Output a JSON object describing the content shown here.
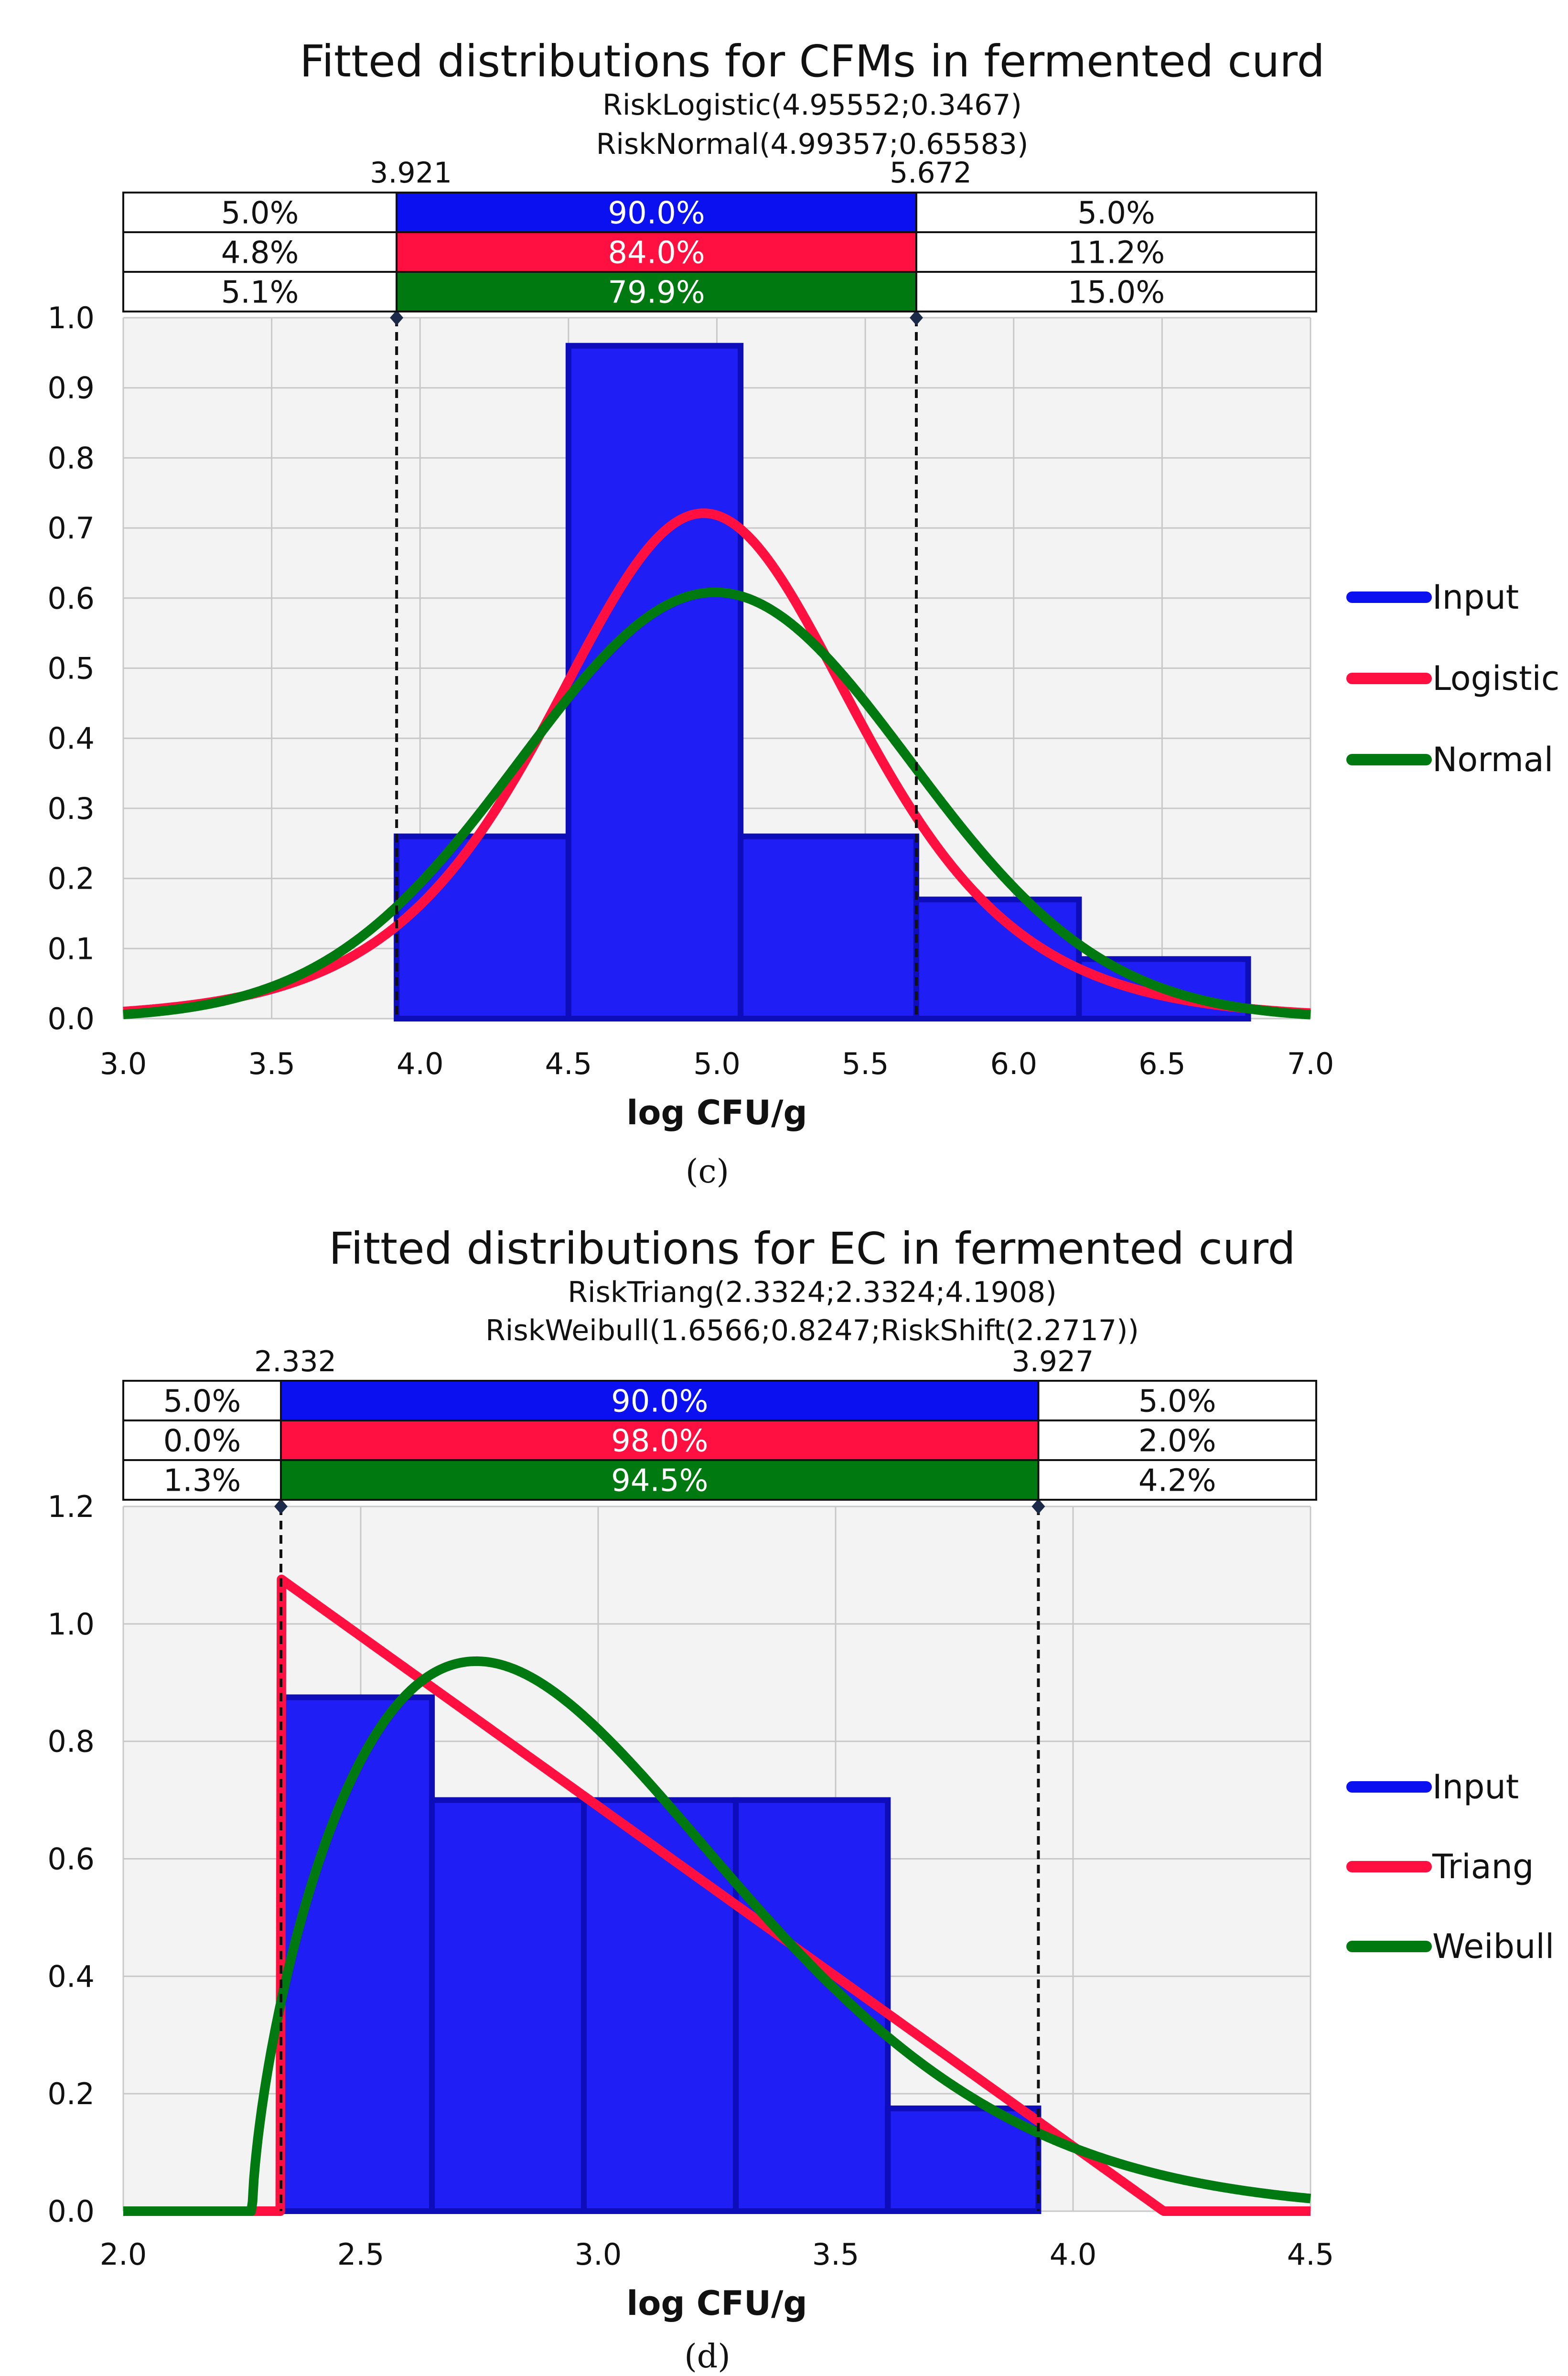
{
  "chart_data": [
    {
      "type": "histogram_with_fitted_curves",
      "panel_label": "(c)",
      "title": "Fitted distributions for CFMs in fermented curd",
      "subtitles": [
        "RiskLogistic(4.95552;0.3467)",
        "RiskNormal(4.99357;0.65583)"
      ],
      "xlabel": "log CFU/g",
      "ylabel": "",
      "xlim": [
        3.0,
        7.0
      ],
      "ylim": [
        0.0,
        1.0
      ],
      "xticks": [
        3.0,
        3.5,
        4.0,
        4.5,
        5.0,
        5.5,
        6.0,
        6.5,
        7.0
      ],
      "xtick_labels": [
        "3.0",
        "3.5",
        "4.0",
        "4.5",
        "5.0",
        "5.5",
        "6.0",
        "6.5",
        "7.0"
      ],
      "yticks": [
        0.0,
        0.1,
        0.2,
        0.3,
        0.4,
        0.5,
        0.6,
        0.7,
        0.8,
        0.9,
        1.0
      ],
      "ytick_labels": [
        "0.0",
        "0.1",
        "0.2",
        "0.3",
        "0.4",
        "0.5",
        "0.6",
        "0.7",
        "0.8",
        "0.9",
        "1.0"
      ],
      "grid": true,
      "markers": {
        "left_value": 3.921,
        "right_value": 5.672,
        "left_label": "3.921",
        "right_label": "5.672"
      },
      "interval_table": [
        {
          "left": "5.0%",
          "middle": "90.0%",
          "right": "5.0%",
          "color": "#0a10f0"
        },
        {
          "left": "4.8%",
          "middle": "84.0%",
          "right": "11.2%",
          "color": "#ff1040"
        },
        {
          "left": "5.1%",
          "middle": "79.9%",
          "right": "15.0%",
          "color": "#007a10"
        }
      ],
      "histogram": [
        {
          "x0": 3.921,
          "x1": 4.5,
          "density": 0.26
        },
        {
          "x0": 4.5,
          "x1": 5.08,
          "density": 0.96
        },
        {
          "x0": 5.08,
          "x1": 5.672,
          "density": 0.26
        },
        {
          "x0": 5.672,
          "x1": 6.22,
          "density": 0.17
        },
        {
          "x0": 6.22,
          "x1": 6.79,
          "density": 0.085
        }
      ],
      "legend": [
        {
          "name": "Input",
          "color": "#0a10f0"
        },
        {
          "name": "Logistic",
          "color": "#ff1040"
        },
        {
          "name": "Normal",
          "color": "#007a10"
        }
      ],
      "curves": [
        {
          "name": "Logistic",
          "dist": "logistic",
          "params": [
            4.95552,
            0.3467
          ],
          "color": "#ff1040"
        },
        {
          "name": "Normal",
          "dist": "normal",
          "params": [
            4.99357,
            0.65583
          ],
          "color": "#007a10"
        }
      ]
    },
    {
      "type": "histogram_with_fitted_curves",
      "panel_label": "(d)",
      "title": "Fitted distributions for EC in fermented curd",
      "subtitles": [
        "RiskTriang(2.3324;2.3324;4.1908)",
        "RiskWeibull(1.6566;0.8247;RiskShift(2.2717))"
      ],
      "xlabel": "log CFU/g",
      "ylabel": "",
      "xlim": [
        2.0,
        4.5
      ],
      "ylim": [
        0.0,
        1.2
      ],
      "xticks": [
        2.0,
        2.5,
        3.0,
        3.5,
        4.0,
        4.5
      ],
      "xtick_labels": [
        "2.0",
        "2.5",
        "3.0",
        "3.5",
        "4.0",
        "4.5"
      ],
      "yticks": [
        0.0,
        0.2,
        0.4,
        0.6,
        0.8,
        1.0,
        1.2
      ],
      "ytick_labels": [
        "0.0",
        "0.2",
        "0.4",
        "0.6",
        "0.8",
        "1.0",
        "1.2"
      ],
      "grid": true,
      "markers": {
        "left_value": 2.332,
        "right_value": 3.927,
        "left_label": "2.332",
        "right_label": "3.927"
      },
      "interval_table": [
        {
          "left": "5.0%",
          "middle": "90.0%",
          "right": "5.0%",
          "color": "#0a10f0"
        },
        {
          "left": "0.0%",
          "middle": "98.0%",
          "right": "2.0%",
          "color": "#ff1040"
        },
        {
          "left": "1.3%",
          "middle": "94.5%",
          "right": "4.2%",
          "color": "#007a10"
        }
      ],
      "histogram": [
        {
          "x0": 2.332,
          "x1": 2.65,
          "density": 0.875
        },
        {
          "x0": 2.65,
          "x1": 2.97,
          "density": 0.7
        },
        {
          "x0": 2.97,
          "x1": 3.29,
          "density": 0.7
        },
        {
          "x0": 3.29,
          "x1": 3.61,
          "density": 0.7
        },
        {
          "x0": 3.61,
          "x1": 3.927,
          "density": 0.175
        }
      ],
      "legend": [
        {
          "name": "Input",
          "color": "#0a10f0"
        },
        {
          "name": "Triang",
          "color": "#ff1040"
        },
        {
          "name": "Weibull",
          "color": "#007a10"
        }
      ],
      "curves": [
        {
          "name": "Triang",
          "dist": "triang",
          "params": [
            2.3324,
            2.3324,
            4.1908
          ],
          "color": "#ff1040"
        },
        {
          "name": "Weibull",
          "dist": "weibull",
          "params": [
            1.6566,
            0.8247,
            2.2717
          ],
          "color": "#007a10"
        }
      ]
    }
  ]
}
